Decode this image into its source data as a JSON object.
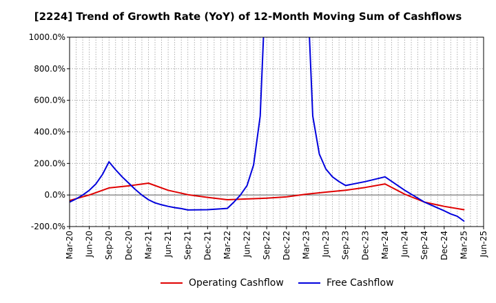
{
  "chart_data": {
    "type": "line",
    "title": "[2224]  Trend of Growth Rate (YoY) of 12-Month Moving Sum of Cashflows",
    "xlabel": "",
    "ylabel": "",
    "ylim": [
      -200,
      1000
    ],
    "clip_top": 1000,
    "yticks": [
      "1000.0%",
      "800.0%",
      "600.0%",
      "400.0%",
      "200.0%",
      "0.0%",
      "-200.0%"
    ],
    "ytick_values": [
      1000,
      800,
      600,
      400,
      200,
      0,
      -200
    ],
    "xtick_labels": [
      "Mar-20",
      "Jun-20",
      "Sep-20",
      "Dec-20",
      "Mar-21",
      "Jun-21",
      "Sep-21",
      "Dec-21",
      "Mar-22",
      "Jun-22",
      "Sep-22",
      "Dec-22",
      "Mar-23",
      "Jun-23",
      "Sep-23",
      "Dec-23",
      "Mar-24",
      "Jun-24",
      "Sep-24",
      "Dec-24",
      "Mar-25",
      "Jun-25"
    ],
    "grid": true,
    "legend_position": "bottom",
    "series": [
      {
        "name": "Operating Cashflow",
        "color": "#e00000",
        "months": [
          "2020-03",
          "2020-06",
          "2020-09",
          "2020-12",
          "2021-03",
          "2021-06",
          "2021-09",
          "2021-12",
          "2022-03",
          "2022-06",
          "2022-09",
          "2022-12",
          "2023-03",
          "2023-06",
          "2023-09",
          "2023-12",
          "2024-03",
          "2024-06",
          "2024-09",
          "2024-12",
          "2025-03"
        ],
        "values": [
          -35,
          0,
          45,
          58,
          75,
          30,
          2,
          -15,
          -30,
          -25,
          -20,
          -12,
          5,
          18,
          30,
          48,
          70,
          5,
          -45,
          -72,
          -93
        ]
      },
      {
        "name": "Free Cashflow",
        "color": "#0000dd",
        "months": [
          "2020-03",
          "2020-04",
          "2020-05",
          "2020-06",
          "2020-07",
          "2020-08",
          "2020-09",
          "2020-10",
          "2020-11",
          "2020-12",
          "2021-01",
          "2021-02",
          "2021-03",
          "2021-04",
          "2021-05",
          "2021-06",
          "2021-07",
          "2021-08",
          "2021-09",
          "2021-12",
          "2022-03",
          "2022-04",
          "2022-05",
          "2022-06",
          "2022-07",
          "2022-08",
          "2022-09",
          "2023-03",
          "2023-04",
          "2023-05",
          "2023-06",
          "2023-07",
          "2023-08",
          "2023-09",
          "2023-12",
          "2024-03",
          "2024-06",
          "2024-09",
          "2024-12",
          "2025-01",
          "2025-02",
          "2025-03"
        ],
        "values": [
          -45,
          -25,
          0,
          30,
          70,
          130,
          210,
          160,
          115,
          75,
          35,
          0,
          -30,
          -50,
          -62,
          -72,
          -80,
          -86,
          -95,
          -93,
          -85,
          -45,
          0,
          60,
          190,
          500,
          1500,
          1500,
          500,
          260,
          165,
          115,
          85,
          60,
          85,
          115,
          30,
          -45,
          -100,
          -120,
          -135,
          -165
        ]
      }
    ]
  }
}
